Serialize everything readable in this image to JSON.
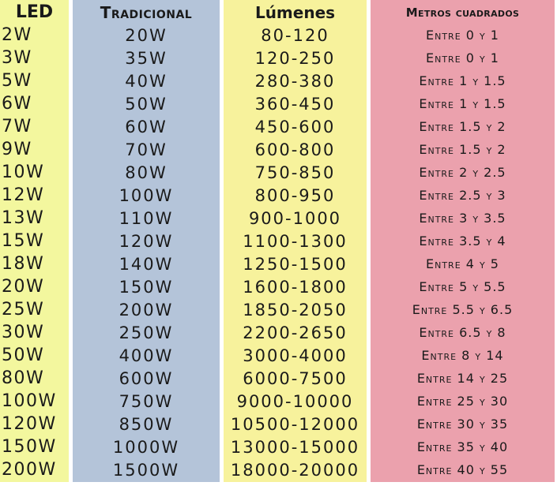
{
  "headers": {
    "led": "LED",
    "tradicional": "Tradicional",
    "lumenes": "Lúmenes",
    "metros": "Metros cuadrados"
  },
  "rows": [
    {
      "led": "2W",
      "tradicional": "20W",
      "lumenes": "80-120",
      "metros": "Entre 0 y 1"
    },
    {
      "led": "3W",
      "tradicional": "35W",
      "lumenes": "120-250",
      "metros": "Entre 0 y 1"
    },
    {
      "led": "5W",
      "tradicional": "40W",
      "lumenes": "280-380",
      "metros": "Entre 1 y 1.5"
    },
    {
      "led": "6W",
      "tradicional": "50W",
      "lumenes": "360-450",
      "metros": "Entre 1 y 1.5"
    },
    {
      "led": "7W",
      "tradicional": "60W",
      "lumenes": "450-600",
      "metros": "Entre 1.5 y 2"
    },
    {
      "led": "9W",
      "tradicional": "70W",
      "lumenes": "600-800",
      "metros": "Entre 1.5 y 2"
    },
    {
      "led": "10W",
      "tradicional": "80W",
      "lumenes": "750-850",
      "metros": "Entre 2 y 2.5"
    },
    {
      "led": "12W",
      "tradicional": "100W",
      "lumenes": "800-950",
      "metros": "Entre 2.5 y 3"
    },
    {
      "led": "13W",
      "tradicional": "110W",
      "lumenes": "900-1000",
      "metros": "Entre 3 y 3.5"
    },
    {
      "led": "15W",
      "tradicional": "120W",
      "lumenes": "1100-1300",
      "metros": "Entre 3.5 y 4"
    },
    {
      "led": "18W",
      "tradicional": "140W",
      "lumenes": "1250-1500",
      "metros": "Entre 4 y 5"
    },
    {
      "led": "20W",
      "tradicional": "150W",
      "lumenes": "1600-1800",
      "metros": "Entre 5 y 5.5"
    },
    {
      "led": "25W",
      "tradicional": "200W",
      "lumenes": "1850-2050",
      "metros": "Entre 5.5 y 6.5"
    },
    {
      "led": "30W",
      "tradicional": "250W",
      "lumenes": "2200-2650",
      "metros": "Entre 6.5 y 8"
    },
    {
      "led": "50W",
      "tradicional": "400W",
      "lumenes": "3000-4000",
      "metros": "Entre 8 y 14"
    },
    {
      "led": "80W",
      "tradicional": "600W",
      "lumenes": "6000-7500",
      "metros": "Entre 14 y 25"
    },
    {
      "led": "100W",
      "tradicional": "750W",
      "lumenes": "9000-10000",
      "metros": "Entre 25 y 30"
    },
    {
      "led": "120W",
      "tradicional": "850W",
      "lumenes": "10500-12000",
      "metros": "Entre 30 y 35"
    },
    {
      "led": "150W",
      "tradicional": "1000W",
      "lumenes": "13000-15000",
      "metros": "Entre 35 y 40"
    },
    {
      "led": "200W",
      "tradicional": "1500W",
      "lumenes": "18000-20000",
      "metros": "Entre 40 y 55"
    }
  ],
  "colors": {
    "led": "#f3f79e",
    "tradicional": "#b4c4d9",
    "lumenes": "#f7f29c",
    "metros": "#eba1ad"
  }
}
